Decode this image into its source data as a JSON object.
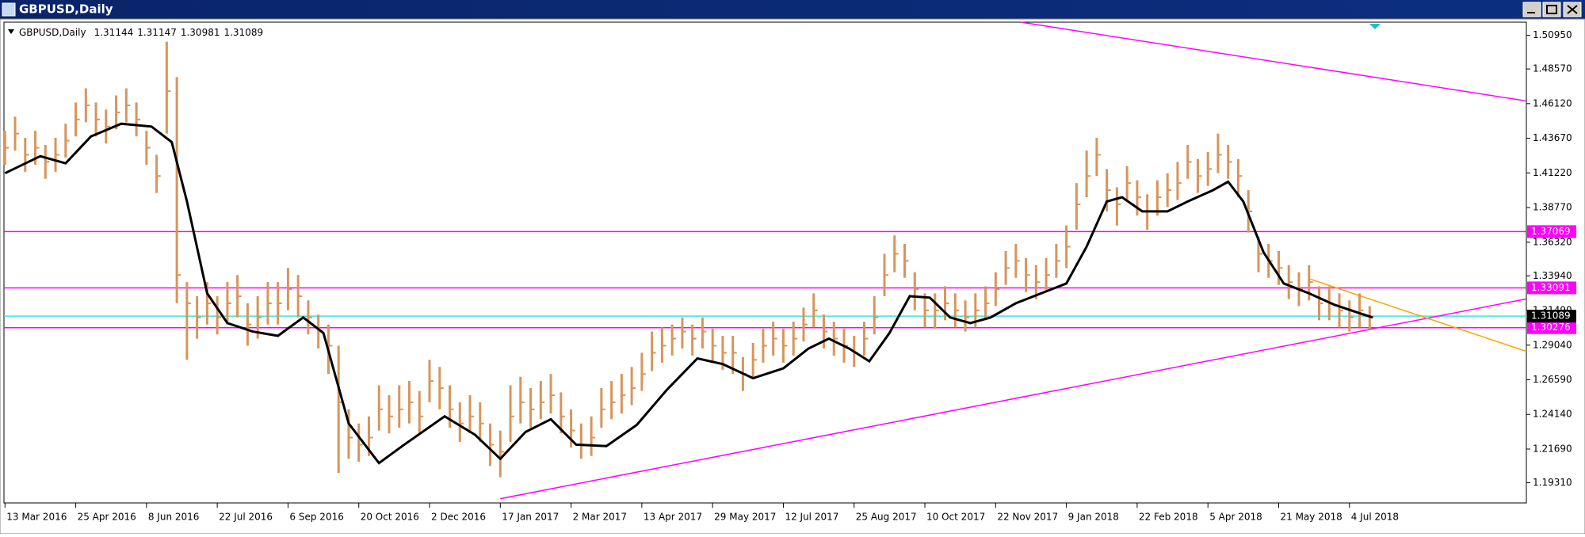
{
  "window_title": "GBPUSD,Daily",
  "chart_data": {
    "type": "ohlc",
    "symbol": "GBPUSD,Daily",
    "header_values": [
      1.31144,
      1.31147,
      1.30981,
      1.31089
    ],
    "color": "#d8955a",
    "ylim": [
      1.1788,
      1.5188
    ],
    "xlim": [
      -0.1,
      150.5
    ],
    "yticks": [
      {
        "value": 1.5095,
        "label": "1.50950"
      },
      {
        "value": 1.4857,
        "label": "1.48570"
      },
      {
        "value": 1.4612,
        "label": "1.46120"
      },
      {
        "value": 1.4367,
        "label": "1.43670"
      },
      {
        "value": 1.4122,
        "label": "1.41220"
      },
      {
        "value": 1.3877,
        "label": "1.38770"
      },
      {
        "value": 1.3632,
        "label": "1.36320"
      },
      {
        "value": 1.3394,
        "label": "1.33940"
      },
      {
        "value": 1.3149,
        "label": "1.31490"
      },
      {
        "value": 1.2904,
        "label": "1.29040"
      },
      {
        "value": 1.2659,
        "label": "1.26590"
      },
      {
        "value": 1.2414,
        "label": "1.24140"
      },
      {
        "value": 1.2169,
        "label": "1.21690"
      },
      {
        "value": 1.1931,
        "label": "1.19310"
      }
    ],
    "xticks": [
      {
        "value": 0,
        "label": "13 Mar 2016"
      },
      {
        "value": 7,
        "label": "25 Apr 2016"
      },
      {
        "value": 14,
        "label": "8 Jun 2016"
      },
      {
        "value": 21,
        "label": "22 Jul 2016"
      },
      {
        "value": 28,
        "label": "6 Sep 2016"
      },
      {
        "value": 35,
        "label": "20 Oct 2016"
      },
      {
        "value": 42,
        "label": "2 Dec 2016"
      },
      {
        "value": 49,
        "label": "17 Jan 2017"
      },
      {
        "value": 56,
        "label": "2 Mar 2017"
      },
      {
        "value": 63,
        "label": "13 Apr 2017"
      },
      {
        "value": 70,
        "label": "29 May 2017"
      },
      {
        "value": 77,
        "label": "12 Jul 2017"
      },
      {
        "value": 84,
        "label": "25 Aug 2017"
      },
      {
        "value": 91,
        "label": "10 Oct 2017"
      },
      {
        "value": 98,
        "label": "22 Nov 2017"
      },
      {
        "value": 105,
        "label": "9 Jan 2018"
      },
      {
        "value": 112,
        "label": "22 Feb 2018"
      },
      {
        "value": 119,
        "label": "5 Apr 2018"
      },
      {
        "value": 126,
        "label": "21 May 2018"
      },
      {
        "value": 133,
        "label": "4 Jul 2018"
      }
    ],
    "high": [
      1.442,
      1.452,
      1.437,
      1.442,
      1.432,
      1.437,
      1.447,
      1.462,
      1.472,
      1.462,
      1.457,
      1.467,
      1.472,
      1.462,
      1.442,
      1.425,
      1.505,
      1.48,
      1.335,
      1.325,
      1.335,
      1.325,
      1.335,
      1.34,
      1.32,
      1.325,
      1.335,
      1.335,
      1.345,
      1.34,
      1.322,
      1.312,
      1.305,
      1.29,
      1.245,
      1.235,
      1.24,
      1.262,
      1.255,
      1.262,
      1.265,
      1.258,
      1.28,
      1.275,
      1.262,
      1.25,
      1.255,
      1.25,
      1.235,
      1.23,
      1.262,
      1.268,
      1.26,
      1.265,
      1.27,
      1.257,
      1.245,
      1.235,
      1.24,
      1.26,
      1.265,
      1.27,
      1.275,
      1.285,
      1.3,
      1.303,
      1.305,
      1.31,
      1.305,
      1.31,
      1.302,
      1.297,
      1.297,
      1.282,
      1.292,
      1.302,
      1.307,
      1.302,
      1.307,
      1.317,
      1.327,
      1.312,
      1.307,
      1.302,
      1.297,
      1.307,
      1.325,
      1.355,
      1.368,
      1.362,
      1.342,
      1.327,
      1.327,
      1.332,
      1.327,
      1.322,
      1.327,
      1.332,
      1.342,
      1.357,
      1.362,
      1.352,
      1.347,
      1.352,
      1.362,
      1.375,
      1.405,
      1.428,
      1.437,
      1.415,
      1.402,
      1.417,
      1.407,
      1.397,
      1.407,
      1.412,
      1.42,
      1.432,
      1.422,
      1.427,
      1.44,
      1.432,
      1.422,
      1.4,
      1.367,
      1.362,
      1.357,
      1.347,
      1.342,
      1.347,
      1.332,
      1.332,
      1.327,
      1.322,
      1.327,
      1.318
    ],
    "low": [
      1.418,
      1.428,
      1.413,
      1.418,
      1.408,
      1.413,
      1.423,
      1.438,
      1.448,
      1.438,
      1.433,
      1.443,
      1.448,
      1.438,
      1.418,
      1.398,
      1.44,
      1.32,
      1.28,
      1.295,
      1.305,
      1.298,
      1.305,
      1.31,
      1.29,
      1.295,
      1.305,
      1.305,
      1.315,
      1.31,
      1.298,
      1.288,
      1.27,
      1.2,
      1.21,
      1.208,
      1.212,
      1.23,
      1.228,
      1.232,
      1.235,
      1.228,
      1.25,
      1.245,
      1.232,
      1.222,
      1.228,
      1.222,
      1.205,
      1.197,
      1.222,
      1.235,
      1.232,
      1.238,
      1.242,
      1.228,
      1.218,
      1.21,
      1.212,
      1.232,
      1.238,
      1.242,
      1.248,
      1.258,
      1.272,
      1.278,
      1.283,
      1.288,
      1.283,
      1.288,
      1.278,
      1.273,
      1.27,
      1.258,
      1.268,
      1.278,
      1.283,
      1.278,
      1.283,
      1.293,
      1.303,
      1.288,
      1.283,
      1.278,
      1.275,
      1.283,
      1.298,
      1.325,
      1.342,
      1.338,
      1.315,
      1.303,
      1.302,
      1.308,
      1.303,
      1.3,
      1.303,
      1.308,
      1.318,
      1.333,
      1.338,
      1.328,
      1.323,
      1.328,
      1.338,
      1.345,
      1.372,
      1.395,
      1.41,
      1.385,
      1.375,
      1.392,
      1.382,
      1.372,
      1.382,
      1.388,
      1.393,
      1.408,
      1.398,
      1.403,
      1.412,
      1.408,
      1.395,
      1.37,
      1.342,
      1.338,
      1.333,
      1.323,
      1.318,
      1.322,
      1.308,
      1.308,
      1.303,
      1.3,
      1.303,
      1.302
    ],
    "close": [
      1.43,
      1.44,
      1.425,
      1.43,
      1.42,
      1.425,
      1.435,
      1.45,
      1.46,
      1.45,
      1.445,
      1.455,
      1.46,
      1.45,
      1.43,
      1.41,
      1.47,
      1.34,
      1.32,
      1.31,
      1.32,
      1.31,
      1.32,
      1.325,
      1.305,
      1.31,
      1.32,
      1.32,
      1.33,
      1.325,
      1.31,
      1.3,
      1.29,
      1.25,
      1.225,
      1.22,
      1.225,
      1.245,
      1.24,
      1.245,
      1.25,
      1.24,
      1.265,
      1.26,
      1.245,
      1.235,
      1.24,
      1.235,
      1.22,
      1.215,
      1.24,
      1.25,
      1.245,
      1.25,
      1.255,
      1.24,
      1.23,
      1.22,
      1.225,
      1.245,
      1.25,
      1.255,
      1.26,
      1.27,
      1.285,
      1.29,
      1.295,
      1.3,
      1.295,
      1.3,
      1.29,
      1.285,
      1.285,
      1.27,
      1.28,
      1.29,
      1.295,
      1.29,
      1.295,
      1.305,
      1.315,
      1.3,
      1.295,
      1.29,
      1.285,
      1.295,
      1.31,
      1.34,
      1.355,
      1.35,
      1.33,
      1.315,
      1.315,
      1.32,
      1.315,
      1.31,
      1.315,
      1.32,
      1.33,
      1.345,
      1.35,
      1.34,
      1.335,
      1.34,
      1.35,
      1.36,
      1.39,
      1.41,
      1.425,
      1.4,
      1.39,
      1.405,
      1.395,
      1.385,
      1.395,
      1.4,
      1.405,
      1.42,
      1.41,
      1.415,
      1.425,
      1.42,
      1.41,
      1.385,
      1.355,
      1.35,
      1.345,
      1.335,
      1.33,
      1.335,
      1.32,
      1.32,
      1.315,
      1.31,
      1.315,
      1.31
    ],
    "moving_average": {
      "color": "#000000",
      "x": [
        0,
        3.5,
        6,
        8.5,
        11.5,
        14.5,
        16.5,
        18,
        20,
        22,
        24.5,
        27,
        29.5,
        31.5,
        34,
        37,
        39.5,
        43.5,
        46.5,
        49,
        51.5,
        54,
        56.5,
        59.5,
        62.5,
        65.5,
        68.5,
        71,
        74,
        77,
        79.5,
        81.5,
        83.5,
        85.5,
        87.5,
        89.5,
        91.5,
        93.5,
        95.5,
        97.5,
        100,
        102.5,
        105,
        107,
        109,
        110.5,
        112.5,
        115,
        117,
        119.5,
        121,
        122.5,
        124.5,
        126.5,
        129,
        131.5,
        134,
        135.3
      ],
      "values": [
        1.412,
        1.424,
        1.419,
        1.438,
        1.447,
        1.445,
        1.434,
        1.392,
        1.327,
        1.306,
        1.3,
        1.297,
        1.31,
        1.299,
        1.235,
        1.207,
        1.22,
        1.24,
        1.227,
        1.21,
        1.229,
        1.238,
        1.22,
        1.219,
        1.234,
        1.259,
        1.281,
        1.277,
        1.267,
        1.274,
        1.288,
        1.295,
        1.288,
        1.279,
        1.299,
        1.325,
        1.324,
        1.31,
        1.306,
        1.31,
        1.32,
        1.327,
        1.334,
        1.36,
        1.392,
        1.395,
        1.385,
        1.385,
        1.392,
        1.4,
        1.406,
        1.392,
        1.356,
        1.334,
        1.327,
        1.319,
        1.313,
        1.31
      ]
    },
    "levels": [
      {
        "value": 1.37069,
        "color": "#ff00ff"
      },
      {
        "value": 1.33091,
        "color": "#ff00ff"
      },
      {
        "value": 1.30276,
        "color": "#ff00ff"
      }
    ],
    "current_price": {
      "value": 1.31089,
      "color": "#40e0e0"
    },
    "trendlines": [
      {
        "color": "#ff00ff",
        "x": [
          49,
          150.5
        ],
        "y": [
          1.1818,
          1.3231
        ]
      },
      {
        "color": "#ff00ff",
        "x": [
          100.5,
          150.5
        ],
        "y": [
          1.5188,
          1.4631
        ]
      },
      {
        "color": "#ffa500",
        "x": [
          129,
          150.5
        ],
        "y": [
          1.3374,
          1.286
        ]
      }
    ]
  }
}
